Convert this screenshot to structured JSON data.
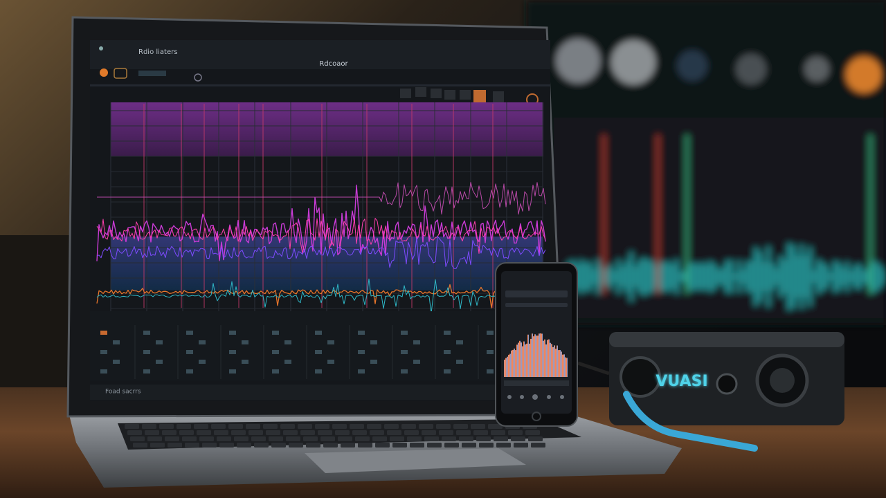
{
  "laptop": {
    "app_title": "Rdio liaters",
    "window_title": "Rdcoaor",
    "panel_label": "Foad sacrrs"
  },
  "device": {
    "brand": "VUASI"
  }
}
